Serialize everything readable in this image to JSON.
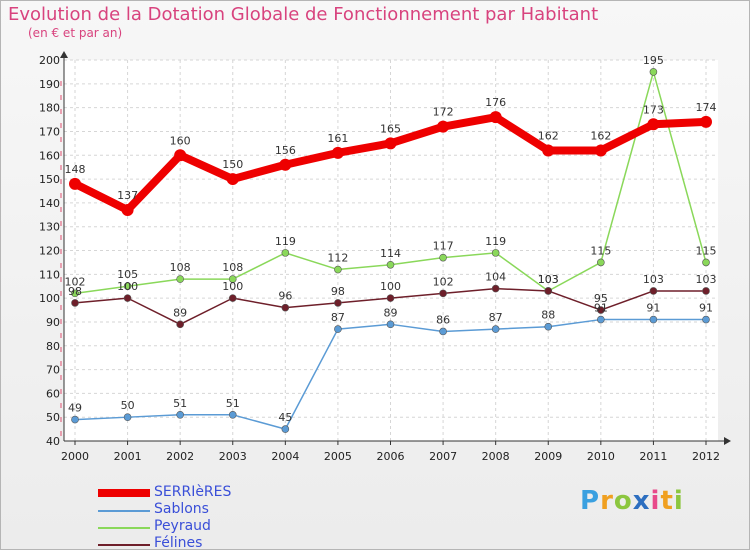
{
  "chart_data": {
    "type": "line",
    "title": "Evolution de la Dotation Globale de Fonctionnement par Habitant",
    "subtitle": "(en € et par an)",
    "xlabel": "",
    "ylabel": "",
    "ylim": [
      40,
      200
    ],
    "yticks": [
      40,
      50,
      60,
      70,
      80,
      90,
      100,
      110,
      120,
      130,
      140,
      150,
      160,
      170,
      180,
      190,
      200
    ],
    "categories": [
      "2000",
      "2001",
      "2002",
      "2003",
      "2004",
      "2005",
      "2006",
      "2007",
      "2008",
      "2009",
      "2010",
      "2011",
      "2012"
    ],
    "grid": true,
    "legend_position": "bottom-left",
    "series": [
      {
        "name": "SERRIèRES",
        "color": "#ee0000",
        "values": [
          148,
          137,
          160,
          150,
          156,
          161,
          165,
          172,
          176,
          162,
          162,
          173,
          174
        ]
      },
      {
        "name": "Sablons",
        "color": "#5b9bd5",
        "values": [
          49,
          50,
          51,
          51,
          45,
          87,
          89,
          86,
          87,
          88,
          91,
          91,
          91
        ]
      },
      {
        "name": "Peyraud",
        "color": "#8ad85a",
        "values": [
          102,
          105,
          108,
          108,
          119,
          112,
          114,
          117,
          119,
          103,
          115,
          195,
          115
        ]
      },
      {
        "name": "Félines",
        "color": "#6e1f2a",
        "values": [
          98,
          100,
          89,
          100,
          96,
          98,
          100,
          102,
          104,
          103,
          95,
          103,
          103
        ]
      }
    ]
  },
  "brand": {
    "letters": [
      "P",
      "r",
      "o",
      "x",
      "i",
      "t",
      "i"
    ]
  }
}
